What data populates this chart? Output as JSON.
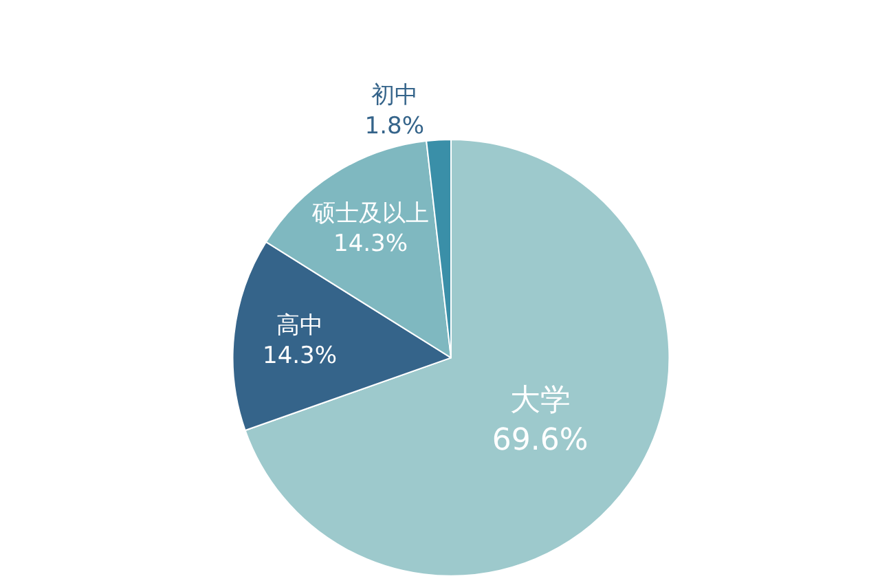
{
  "chart_data": {
    "type": "pie",
    "categories": [
      "大学",
      "高中",
      "硕士及以上",
      "初中"
    ],
    "values": [
      69.6,
      14.3,
      14.3,
      1.8
    ],
    "value_labels": [
      "69.6%",
      "14.3%",
      "14.3%",
      "1.8%"
    ],
    "colors": [
      "#9dc9cc",
      "#35648a",
      "#7fb8c0",
      "#3a8fa8"
    ],
    "legend": false
  }
}
